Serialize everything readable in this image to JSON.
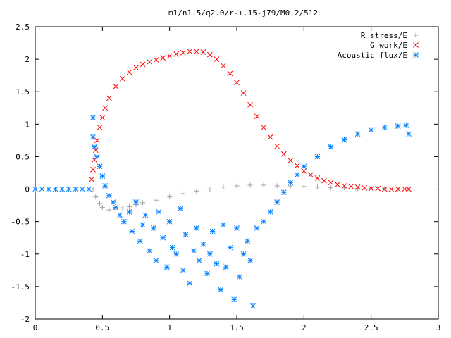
{
  "chart_data": {
    "type": "scatter",
    "title": "m1/n1.5/q2.0/r-+.15-j79/M0.2/512",
    "xlabel": "",
    "ylabel": "",
    "xlim": [
      0,
      3
    ],
    "ylim": [
      -2,
      2.5
    ],
    "grid": false,
    "legend_position": "top-right",
    "x_ticks": [
      "0",
      "0.5",
      "1",
      "1.5",
      "2",
      "2.5",
      "3"
    ],
    "y_ticks": [
      "-2",
      "-1.5",
      "-1",
      "-0.5",
      "0",
      "0.5",
      "1",
      "1.5",
      "2",
      "2.5"
    ],
    "series": [
      {
        "name": "R stress/E",
        "marker": "plus",
        "color": "#a0a0a0",
        "x": [
          0.43,
          0.45,
          0.48,
          0.5,
          0.55,
          0.6,
          0.65,
          0.7,
          0.75,
          0.8,
          0.9,
          1.0,
          1.1,
          1.2,
          1.3,
          1.4,
          1.5,
          1.6,
          1.7,
          1.8,
          1.9,
          2.0,
          2.1,
          2.2,
          2.3,
          2.4,
          2.5,
          2.6,
          2.7,
          2.78
        ],
        "y": [
          0,
          -0.12,
          -0.22,
          -0.28,
          -0.32,
          -0.31,
          -0.29,
          -0.27,
          -0.24,
          -0.21,
          -0.17,
          -0.12,
          -0.07,
          -0.03,
          0.0,
          0.03,
          0.05,
          0.06,
          0.06,
          0.05,
          0.05,
          0.04,
          0.03,
          0.02,
          0.02,
          0.01,
          0.01,
          0.01,
          0.0,
          0.0
        ]
      },
      {
        "name": "G work/E",
        "marker": "cross",
        "color": "#ff0000",
        "x": [
          0.42,
          0.43,
          0.44,
          0.45,
          0.46,
          0.48,
          0.5,
          0.52,
          0.55,
          0.6,
          0.65,
          0.7,
          0.75,
          0.8,
          0.85,
          0.9,
          0.95,
          1.0,
          1.05,
          1.1,
          1.15,
          1.2,
          1.25,
          1.3,
          1.35,
          1.4,
          1.45,
          1.5,
          1.55,
          1.6,
          1.65,
          1.7,
          1.75,
          1.8,
          1.85,
          1.9,
          1.95,
          2.0,
          2.05,
          2.1,
          2.15,
          2.2,
          2.25,
          2.3,
          2.35,
          2.4,
          2.45,
          2.5,
          2.55,
          2.6,
          2.65,
          2.7,
          2.75,
          2.78
        ],
        "y": [
          0.15,
          0.3,
          0.45,
          0.6,
          0.75,
          0.95,
          1.1,
          1.25,
          1.4,
          1.58,
          1.7,
          1.8,
          1.87,
          1.92,
          1.96,
          1.99,
          2.02,
          2.05,
          2.08,
          2.1,
          2.12,
          2.12,
          2.11,
          2.07,
          2.0,
          1.9,
          1.78,
          1.64,
          1.48,
          1.3,
          1.12,
          0.95,
          0.8,
          0.66,
          0.54,
          0.44,
          0.36,
          0.28,
          0.22,
          0.17,
          0.13,
          0.1,
          0.07,
          0.05,
          0.04,
          0.03,
          0.02,
          0.01,
          0.01,
          0.0,
          0.0,
          0.0,
          0.0,
          0.0
        ]
      },
      {
        "name": "Acoustic flux/E",
        "marker": "star",
        "color": "#0080ff",
        "x": [
          0.0,
          0.05,
          0.1,
          0.15,
          0.2,
          0.25,
          0.3,
          0.35,
          0.4,
          0.43,
          0.43,
          0.44,
          0.46,
          0.48,
          0.5,
          0.52,
          0.55,
          0.58,
          0.6,
          0.63,
          0.66,
          0.7,
          0.72,
          0.75,
          0.78,
          0.8,
          0.82,
          0.85,
          0.88,
          0.9,
          0.92,
          0.95,
          0.98,
          1.0,
          1.02,
          1.05,
          1.08,
          1.1,
          1.12,
          1.15,
          1.18,
          1.2,
          1.22,
          1.25,
          1.28,
          1.3,
          1.32,
          1.35,
          1.38,
          1.4,
          1.42,
          1.45,
          1.48,
          1.5,
          1.52,
          1.55,
          1.58,
          1.6,
          1.62,
          1.65,
          1.7,
          1.75,
          1.8,
          1.85,
          1.9,
          1.95,
          2.0,
          2.1,
          2.2,
          2.3,
          2.4,
          2.5,
          2.6,
          2.7,
          2.76,
          2.78
        ],
        "y": [
          0,
          0,
          0,
          0,
          0,
          0,
          0,
          0,
          0,
          1.1,
          0.8,
          0.65,
          0.5,
          0.35,
          0.2,
          0.05,
          -0.1,
          -0.2,
          -0.28,
          -0.4,
          -0.5,
          -0.35,
          -0.65,
          -0.2,
          -0.8,
          -0.55,
          -0.4,
          -0.95,
          -0.6,
          -1.1,
          -0.35,
          -0.75,
          -1.2,
          -0.5,
          -0.9,
          -1.0,
          -0.3,
          -1.25,
          -0.7,
          -1.45,
          -0.95,
          -0.6,
          -1.1,
          -0.85,
          -1.3,
          -1.0,
          -0.65,
          -1.15,
          -1.55,
          -0.55,
          -1.2,
          -0.9,
          -1.7,
          -0.6,
          -1.35,
          -1.0,
          -0.8,
          -1.1,
          -1.8,
          -0.6,
          -0.5,
          -0.35,
          -0.2,
          -0.05,
          0.1,
          0.22,
          0.35,
          0.5,
          0.65,
          0.76,
          0.85,
          0.91,
          0.95,
          0.97,
          0.98,
          0.85
        ]
      }
    ]
  }
}
